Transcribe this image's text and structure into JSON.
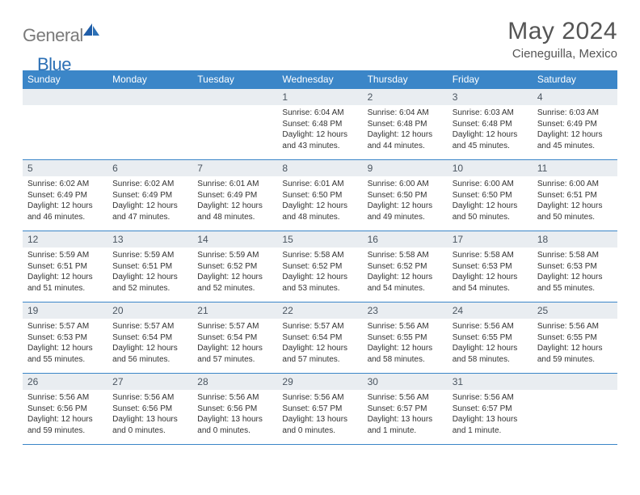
{
  "brand": {
    "text1": "General",
    "text2": "Blue"
  },
  "title": "May 2024",
  "location": "Cieneguilla, Mexico",
  "colors": {
    "header_bg": "#3b86c8",
    "header_text": "#ffffff",
    "daynum_bg": "#e9edf1",
    "daynum_text": "#4a5560",
    "body_text": "#333333",
    "title_text": "#555555",
    "logo_gray": "#7a7a7a",
    "logo_blue": "#2b6fb5",
    "rule": "#3b86c8"
  },
  "typography": {
    "title_fontsize": 30,
    "location_fontsize": 15,
    "dayheader_fontsize": 12,
    "daynum_fontsize": 12,
    "cell_fontsize": 10
  },
  "day_headers": [
    "Sunday",
    "Monday",
    "Tuesday",
    "Wednesday",
    "Thursday",
    "Friday",
    "Saturday"
  ],
  "weeks": [
    [
      {
        "n": "",
        "sr": "",
        "ss": "",
        "dl": ""
      },
      {
        "n": "",
        "sr": "",
        "ss": "",
        "dl": ""
      },
      {
        "n": "",
        "sr": "",
        "ss": "",
        "dl": ""
      },
      {
        "n": "1",
        "sr": "6:04 AM",
        "ss": "6:48 PM",
        "dl": "12 hours and 43 minutes."
      },
      {
        "n": "2",
        "sr": "6:04 AM",
        "ss": "6:48 PM",
        "dl": "12 hours and 44 minutes."
      },
      {
        "n": "3",
        "sr": "6:03 AM",
        "ss": "6:48 PM",
        "dl": "12 hours and 45 minutes."
      },
      {
        "n": "4",
        "sr": "6:03 AM",
        "ss": "6:49 PM",
        "dl": "12 hours and 45 minutes."
      }
    ],
    [
      {
        "n": "5",
        "sr": "6:02 AM",
        "ss": "6:49 PM",
        "dl": "12 hours and 46 minutes."
      },
      {
        "n": "6",
        "sr": "6:02 AM",
        "ss": "6:49 PM",
        "dl": "12 hours and 47 minutes."
      },
      {
        "n": "7",
        "sr": "6:01 AM",
        "ss": "6:49 PM",
        "dl": "12 hours and 48 minutes."
      },
      {
        "n": "8",
        "sr": "6:01 AM",
        "ss": "6:50 PM",
        "dl": "12 hours and 48 minutes."
      },
      {
        "n": "9",
        "sr": "6:00 AM",
        "ss": "6:50 PM",
        "dl": "12 hours and 49 minutes."
      },
      {
        "n": "10",
        "sr": "6:00 AM",
        "ss": "6:50 PM",
        "dl": "12 hours and 50 minutes."
      },
      {
        "n": "11",
        "sr": "6:00 AM",
        "ss": "6:51 PM",
        "dl": "12 hours and 50 minutes."
      }
    ],
    [
      {
        "n": "12",
        "sr": "5:59 AM",
        "ss": "6:51 PM",
        "dl": "12 hours and 51 minutes."
      },
      {
        "n": "13",
        "sr": "5:59 AM",
        "ss": "6:51 PM",
        "dl": "12 hours and 52 minutes."
      },
      {
        "n": "14",
        "sr": "5:59 AM",
        "ss": "6:52 PM",
        "dl": "12 hours and 52 minutes."
      },
      {
        "n": "15",
        "sr": "5:58 AM",
        "ss": "6:52 PM",
        "dl": "12 hours and 53 minutes."
      },
      {
        "n": "16",
        "sr": "5:58 AM",
        "ss": "6:52 PM",
        "dl": "12 hours and 54 minutes."
      },
      {
        "n": "17",
        "sr": "5:58 AM",
        "ss": "6:53 PM",
        "dl": "12 hours and 54 minutes."
      },
      {
        "n": "18",
        "sr": "5:58 AM",
        "ss": "6:53 PM",
        "dl": "12 hours and 55 minutes."
      }
    ],
    [
      {
        "n": "19",
        "sr": "5:57 AM",
        "ss": "6:53 PM",
        "dl": "12 hours and 55 minutes."
      },
      {
        "n": "20",
        "sr": "5:57 AM",
        "ss": "6:54 PM",
        "dl": "12 hours and 56 minutes."
      },
      {
        "n": "21",
        "sr": "5:57 AM",
        "ss": "6:54 PM",
        "dl": "12 hours and 57 minutes."
      },
      {
        "n": "22",
        "sr": "5:57 AM",
        "ss": "6:54 PM",
        "dl": "12 hours and 57 minutes."
      },
      {
        "n": "23",
        "sr": "5:56 AM",
        "ss": "6:55 PM",
        "dl": "12 hours and 58 minutes."
      },
      {
        "n": "24",
        "sr": "5:56 AM",
        "ss": "6:55 PM",
        "dl": "12 hours and 58 minutes."
      },
      {
        "n": "25",
        "sr": "5:56 AM",
        "ss": "6:55 PM",
        "dl": "12 hours and 59 minutes."
      }
    ],
    [
      {
        "n": "26",
        "sr": "5:56 AM",
        "ss": "6:56 PM",
        "dl": "12 hours and 59 minutes."
      },
      {
        "n": "27",
        "sr": "5:56 AM",
        "ss": "6:56 PM",
        "dl": "13 hours and 0 minutes."
      },
      {
        "n": "28",
        "sr": "5:56 AM",
        "ss": "6:56 PM",
        "dl": "13 hours and 0 minutes."
      },
      {
        "n": "29",
        "sr": "5:56 AM",
        "ss": "6:57 PM",
        "dl": "13 hours and 0 minutes."
      },
      {
        "n": "30",
        "sr": "5:56 AM",
        "ss": "6:57 PM",
        "dl": "13 hours and 1 minute."
      },
      {
        "n": "31",
        "sr": "5:56 AM",
        "ss": "6:57 PM",
        "dl": "13 hours and 1 minute."
      },
      {
        "n": "",
        "sr": "",
        "ss": "",
        "dl": ""
      }
    ]
  ],
  "labels": {
    "sunrise": "Sunrise:",
    "sunset": "Sunset:",
    "daylight": "Daylight:"
  }
}
